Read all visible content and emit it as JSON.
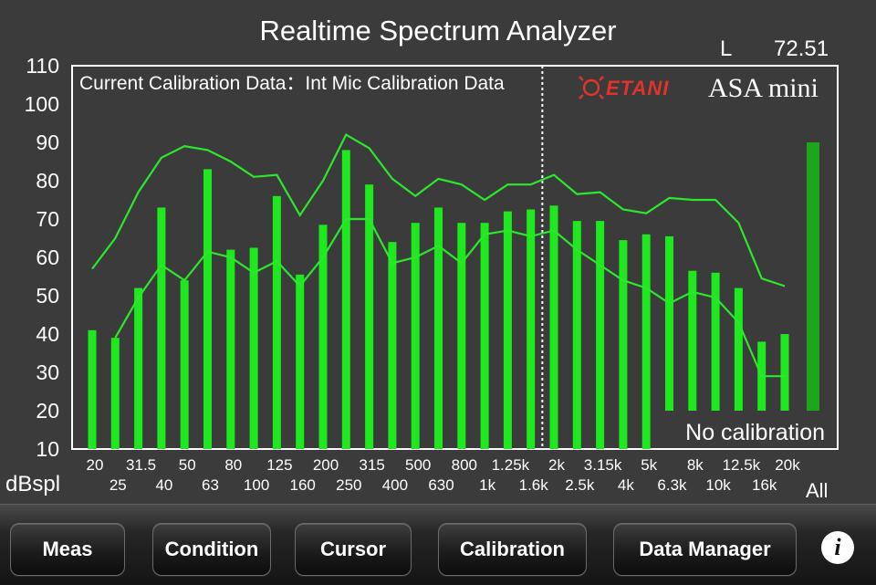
{
  "app": {
    "title": "Realtime Spectrum Analyzer",
    "channel": "L",
    "overall_level": "72.51",
    "unit_label": "dBspl",
    "calibration_info": "Current Calibration Data：Int Mic Calibration Data",
    "no_calibration": "No calibration",
    "brand_etani": "ETANI",
    "brand_product": "ASA mini",
    "all_label": "All"
  },
  "colors": {
    "bar": "#1ee81e",
    "line": "#2ce82c",
    "all_bar": "#1ea51e",
    "frame": "#ffffff",
    "brand_red": "#e0332a"
  },
  "chart_data": {
    "type": "bar",
    "ylim": [
      10,
      110
    ],
    "yticks": [
      "10",
      "20",
      "30",
      "40",
      "50",
      "60",
      "70",
      "80",
      "90",
      "100",
      "110"
    ],
    "categories": [
      "20",
      "25",
      "31.5",
      "40",
      "50",
      "63",
      "80",
      "100",
      "125",
      "160",
      "200",
      "250",
      "315",
      "400",
      "500",
      "630",
      "800",
      "1k",
      "1.25k",
      "1.6k",
      "2k",
      "2.5k",
      "3.15k",
      "4k",
      "5k",
      "6.3k",
      "8k",
      "10k",
      "12.5k",
      "16k",
      "20k"
    ],
    "series": [
      {
        "values": [
          41,
          39,
          52,
          73,
          54,
          83,
          62,
          62.5,
          76,
          55.5,
          68.5,
          88,
          79,
          64,
          69,
          73,
          69,
          69,
          72,
          72.5,
          73.5,
          69.5,
          69.5,
          64.5,
          66,
          65.5,
          56.5,
          56,
          52,
          38,
          40
        ]
      }
    ],
    "bar_bottoms": [
      10,
      10,
      10,
      10,
      10,
      10,
      10,
      10,
      10,
      10,
      10,
      10,
      10,
      10,
      10,
      10,
      10,
      10,
      10,
      10,
      10,
      10,
      10,
      10,
      10,
      20,
      20,
      20,
      20,
      20,
      20
    ],
    "max_line": [
      57,
      65,
      77,
      86,
      89,
      88,
      85,
      81,
      81.5,
      71,
      80,
      92,
      88.5,
      80.5,
      76,
      80.5,
      79,
      75,
      79,
      79,
      81.5,
      76.5,
      77,
      72.5,
      71.5,
      75.5,
      75,
      75,
      69,
      54.5,
      52.5
    ],
    "min_line": [
      null,
      39,
      49.5,
      58,
      54,
      61.5,
      60,
      56,
      59,
      52.5,
      60,
      70,
      70,
      58.5,
      60,
      63,
      58.5,
      66,
      67,
      65.5,
      67,
      62,
      58,
      54,
      52,
      48,
      51,
      49.5,
      43,
      29,
      29
    ],
    "all_bar": {
      "label": "All",
      "value": 90
    },
    "cursor_after_index": 19
  },
  "toolbar": {
    "meas": "Meas",
    "condition": "Condition",
    "cursor": "Cursor",
    "calibration": "Calibration",
    "data_manager": "Data Manager",
    "info": "i"
  }
}
